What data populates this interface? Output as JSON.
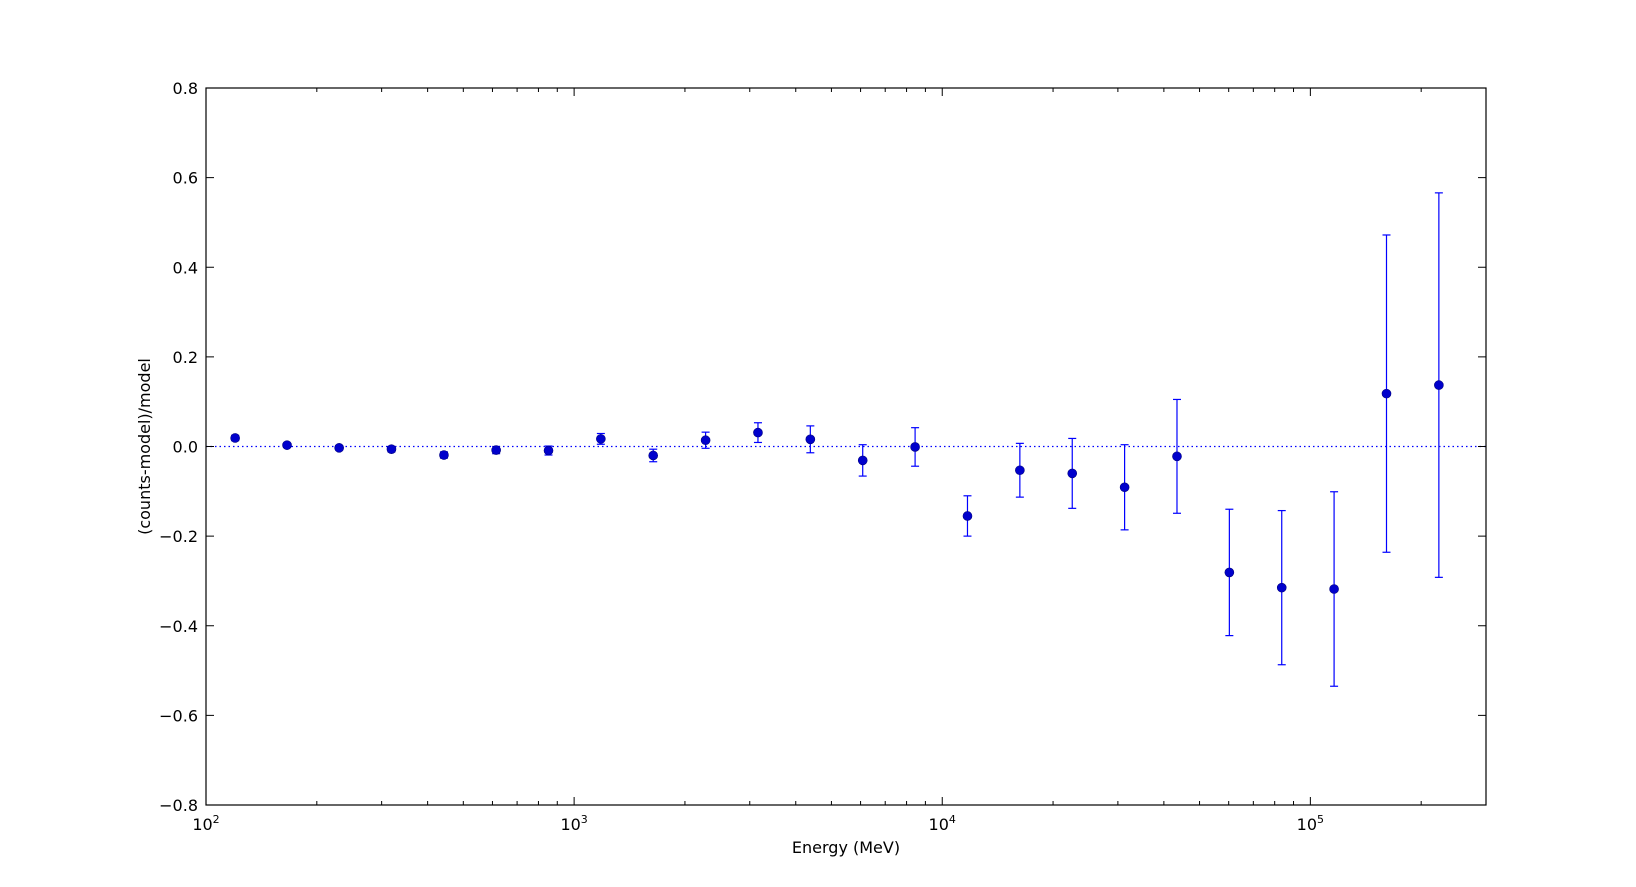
{
  "chart_data": {
    "type": "scatter",
    "xlabel": "Energy (MeV)",
    "ylabel": "(counts-model)/model",
    "xscale": "log",
    "xlim": [
      100,
      300000
    ],
    "ylim": [
      -0.8,
      0.8
    ],
    "x_major_ticks": [
      {
        "value": 100,
        "base": "10",
        "exp": "2"
      },
      {
        "value": 1000,
        "base": "10",
        "exp": "3"
      },
      {
        "value": 10000,
        "base": "10",
        "exp": "4"
      },
      {
        "value": 100000,
        "base": "10",
        "exp": "5"
      }
    ],
    "y_ticks": [
      {
        "value": -0.8,
        "label": "−0.8"
      },
      {
        "value": -0.6,
        "label": "−0.6"
      },
      {
        "value": -0.4,
        "label": "−0.4"
      },
      {
        "value": -0.2,
        "label": "−0.2"
      },
      {
        "value": 0.0,
        "label": "0.0"
      },
      {
        "value": 0.2,
        "label": "0.2"
      },
      {
        "value": 0.4,
        "label": "0.4"
      },
      {
        "value": 0.6,
        "label": "0.6"
      },
      {
        "value": 0.8,
        "label": "0.8"
      }
    ],
    "reference_line": {
      "y": 0.0,
      "style": "dotted"
    },
    "grid": false,
    "colors": {
      "marker": "#0000cc",
      "errorbar": "#0000ff",
      "reference": "#0000ff"
    },
    "points": [
      {
        "x": 120,
        "y": 0.019,
        "err": 0.006
      },
      {
        "x": 166,
        "y": 0.003,
        "err": 0.005
      },
      {
        "x": 230,
        "y": -0.003,
        "err": 0.005
      },
      {
        "x": 319,
        "y": -0.006,
        "err": 0.006
      },
      {
        "x": 443,
        "y": -0.019,
        "err": 0.007
      },
      {
        "x": 614,
        "y": -0.008,
        "err": 0.008
      },
      {
        "x": 852,
        "y": -0.009,
        "err": 0.01
      },
      {
        "x": 1182,
        "y": 0.017,
        "err": 0.012
      },
      {
        "x": 1640,
        "y": -0.02,
        "err": 0.014
      },
      {
        "x": 2276,
        "y": 0.014,
        "err": 0.018
      },
      {
        "x": 3158,
        "y": 0.031,
        "err": 0.022
      },
      {
        "x": 4382,
        "y": 0.016,
        "err": 0.03
      },
      {
        "x": 6081,
        "y": -0.031,
        "err": 0.035
      },
      {
        "x": 8438,
        "y": -0.001,
        "err": 0.043
      },
      {
        "x": 11710,
        "y": -0.155,
        "err": 0.045
      },
      {
        "x": 16250,
        "y": -0.053,
        "err": 0.06
      },
      {
        "x": 22550,
        "y": -0.06,
        "err": 0.078
      },
      {
        "x": 31290,
        "y": -0.091,
        "err": 0.095
      },
      {
        "x": 43420,
        "y": -0.022,
        "err": 0.127
      },
      {
        "x": 60250,
        "y": -0.281,
        "err": 0.141
      },
      {
        "x": 83610,
        "y": -0.315,
        "err": 0.172
      },
      {
        "x": 116000,
        "y": -0.318,
        "err": 0.217
      },
      {
        "x": 161000,
        "y": 0.118,
        "err": 0.354
      },
      {
        "x": 223400,
        "y": 0.137,
        "err": 0.429
      }
    ]
  }
}
